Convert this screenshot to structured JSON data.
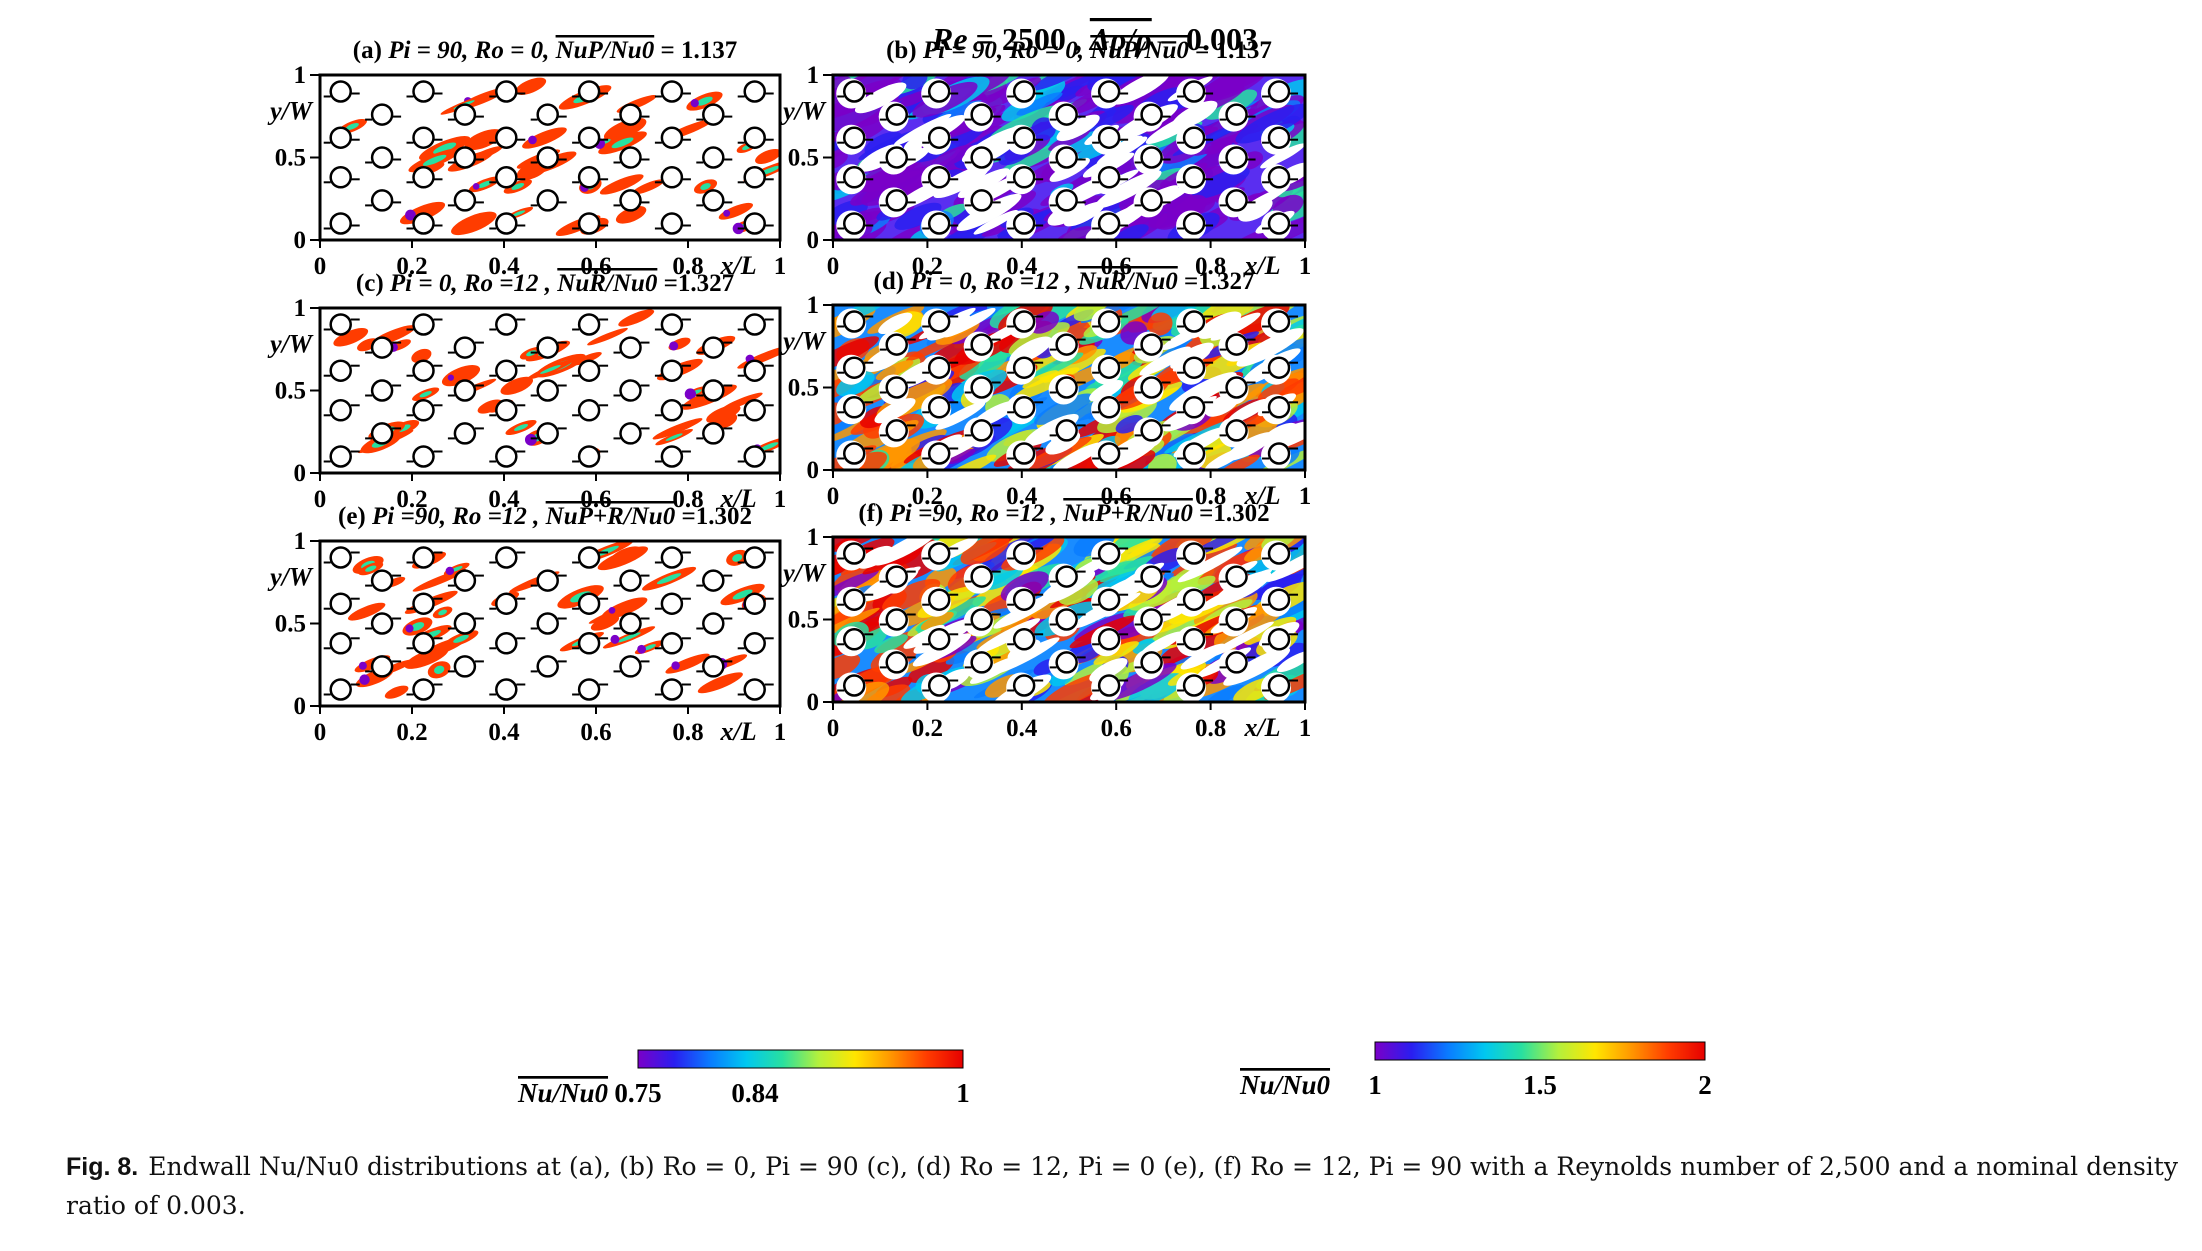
{
  "figure": {
    "header": {
      "re_label": "Re",
      "re_value": "= 2500 ,",
      "density_label": "Δρ/ρ",
      "density_value": "= 0.003"
    },
    "axes": {
      "x_label": "x/L",
      "y_label": "y/W",
      "x_ticks": [
        "0",
        "0.2",
        "0.4",
        "0.6",
        "0.8",
        "1"
      ],
      "y_ticks": [
        "0",
        "0.5",
        "1"
      ],
      "x_range": [
        0,
        1
      ],
      "y_range": [
        0,
        1
      ]
    },
    "panels": [
      {
        "id": "a",
        "prefix": "(a)",
        "params": "Pi = 90, Ro = 0,",
        "ratio_label": "NuP/Nu0",
        "ratio_value": "= 1.137",
        "scale": "narrow",
        "mode": "sparse",
        "rotated": false
      },
      {
        "id": "b",
        "prefix": "(b)",
        "params": "Pi = 90, Ro = 0,",
        "ratio_label": "NuP/Nu0",
        "ratio_value": "= 1.137",
        "scale": "wide",
        "mode": "dense",
        "rotated": false
      },
      {
        "id": "c",
        "prefix": "(c)",
        "params": "Pi = 0, Ro =12 ,",
        "ratio_label": "NuR/Nu0",
        "ratio_value": "=1.327",
        "scale": "narrow",
        "mode": "sparse",
        "rotated": true
      },
      {
        "id": "d",
        "prefix": "(d)",
        "params": "Pi = 0, Ro =12 ,",
        "ratio_label": "NuR/Nu0",
        "ratio_value": "=1.327",
        "scale": "wide",
        "mode": "dense",
        "rotated": true
      },
      {
        "id": "e",
        "prefix": "(e)",
        "params": "Pi =90, Ro =12 ,",
        "ratio_label": "NuP+R/Nu0",
        "ratio_value": "=1.302",
        "scale": "narrow",
        "mode": "sparse",
        "rotated": true
      },
      {
        "id": "f",
        "prefix": "(f)",
        "params": "Pi =90, Ro =12 ,",
        "ratio_label": "NuP+R/Nu0",
        "ratio_value": "=1.302",
        "scale": "wide",
        "mode": "dense",
        "rotated": true
      }
    ],
    "pins": {
      "rows_odd": [
        0.1,
        0.38,
        0.62,
        0.9
      ],
      "rows_even": [
        0.24,
        0.5,
        0.76
      ],
      "cols": [
        0.045,
        0.135,
        0.225,
        0.315,
        0.405,
        0.495,
        0.585,
        0.675,
        0.765,
        0.855,
        0.945
      ]
    },
    "colorbars": [
      {
        "id": "narrow",
        "label": "Nu/Nu0",
        "ticks": [
          "0.75",
          "0.84",
          "1"
        ],
        "tick_values": [
          0.75,
          0.84,
          1.0
        ],
        "range": [
          0.75,
          1.0
        ]
      },
      {
        "id": "wide",
        "label": "Nu/Nu0",
        "ticks": [
          "1",
          "1.5",
          "2"
        ],
        "tick_values": [
          1,
          1.5,
          2
        ],
        "range": [
          1,
          2
        ]
      }
    ],
    "colormap": [
      "#7a00c8",
      "#2a1ef0",
      "#0a7cff",
      "#00c8f0",
      "#28e0a0",
      "#b4f03c",
      "#ffe600",
      "#ff9600",
      "#ff3c00",
      "#e60000"
    ]
  },
  "caption": {
    "label": "Fig. 8.",
    "text": "Endwall Nu/Nu0 distributions at (a), (b) Ro = 0, Pi = 90 (c), (d) Ro = 12, Pi = 0 (e), (f) Ro = 12, Pi = 90 with a Reynolds number of 2,500 and a nominal density ratio of 0.003."
  }
}
